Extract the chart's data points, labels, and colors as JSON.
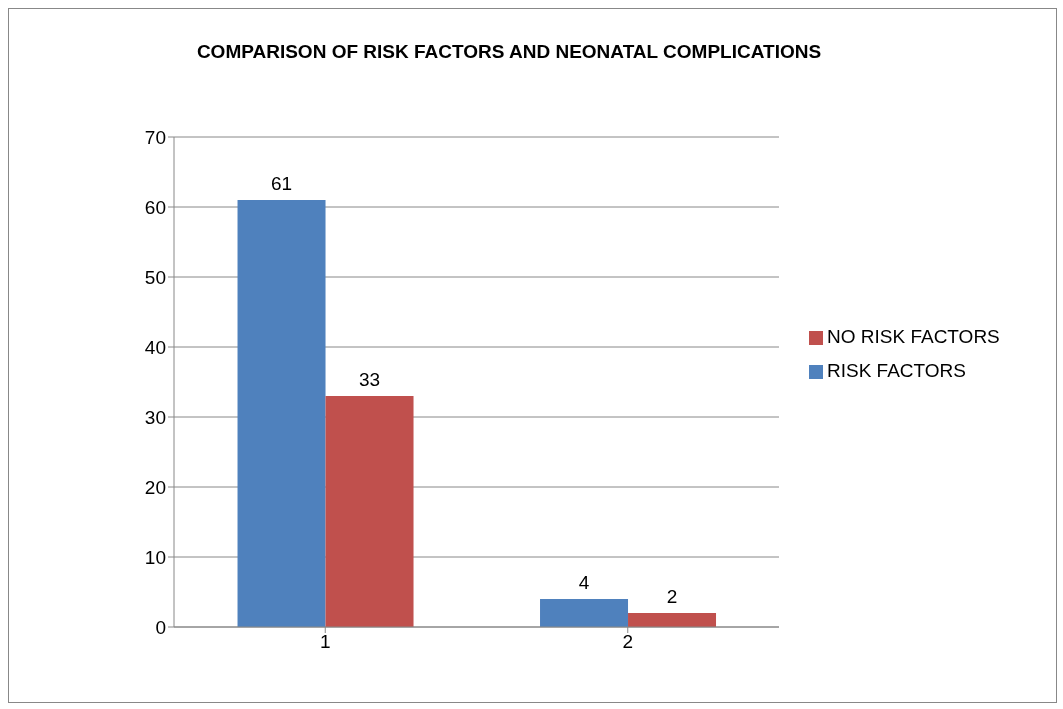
{
  "chart_data": {
    "type": "bar",
    "title": "COMPARISON OF RISK FACTORS AND NEONATAL COMPLICATIONS",
    "categories": [
      "1",
      "2"
    ],
    "series": [
      {
        "name": "RISK FACTORS",
        "color": "#4f81bd",
        "values": [
          61,
          4
        ]
      },
      {
        "name": "NO RISK FACTORS",
        "color": "#c0504d",
        "values": [
          33,
          2
        ]
      }
    ],
    "ylim": [
      0,
      70
    ],
    "yticks": [
      0,
      10,
      20,
      30,
      40,
      50,
      60,
      70
    ],
    "grid": "y",
    "legend": "right",
    "data_labels": true
  }
}
